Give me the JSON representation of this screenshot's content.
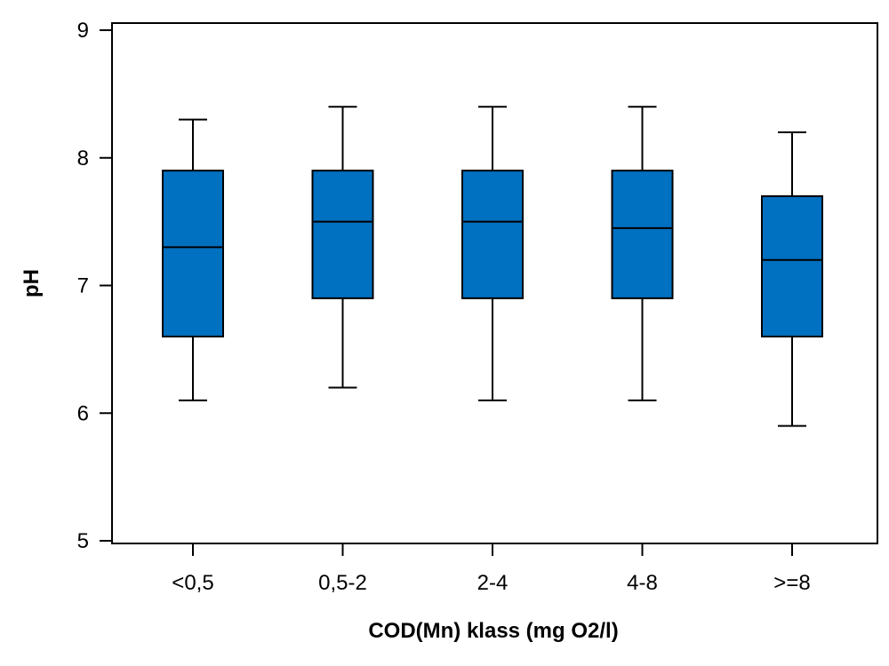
{
  "chart_data": {
    "type": "boxplot",
    "title": "",
    "xlabel": "COD(Mn) klass (mg O2/l)",
    "ylabel": "pH",
    "ylim": [
      5,
      9
    ],
    "yticks": [
      5,
      6,
      7,
      8,
      9
    ],
    "grid": false,
    "legend": "none",
    "box_color": "#0070C0",
    "categories": [
      "<0,5",
      "0,5-2",
      "2-4",
      "4-8",
      ">=8"
    ],
    "boxes": [
      {
        "category": "<0,5",
        "whisker_low": 6.1,
        "q1": 6.6,
        "median": 7.3,
        "q3": 7.9,
        "whisker_high": 8.3
      },
      {
        "category": "0,5-2",
        "whisker_low": 6.2,
        "q1": 6.9,
        "median": 7.5,
        "q3": 7.9,
        "whisker_high": 8.4
      },
      {
        "category": "2-4",
        "whisker_low": 6.1,
        "q1": 6.9,
        "median": 7.5,
        "q3": 7.9,
        "whisker_high": 8.4
      },
      {
        "category": "4-8",
        "whisker_low": 6.1,
        "q1": 6.9,
        "median": 7.45,
        "q3": 7.9,
        "whisker_high": 8.4
      },
      {
        "category": ">=8",
        "whisker_low": 5.9,
        "q1": 6.6,
        "median": 7.2,
        "q3": 7.7,
        "whisker_high": 8.2
      }
    ]
  }
}
